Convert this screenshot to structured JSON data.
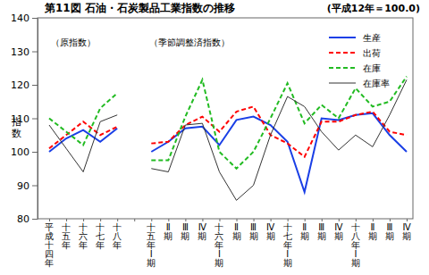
{
  "chart_data": {
    "type": "line",
    "title": "第11図 石油・石炭製品工業指数の推移",
    "subtitle": "(平成12年＝100.0)",
    "y_label": "指数",
    "annotations": [
      "（原指数）",
      "（季節調整済指数）"
    ],
    "categories": [
      "平成十四年",
      "十五年",
      "十六年",
      "十七年",
      "十八年",
      null,
      "十五年Ⅰ期",
      "Ⅱ期",
      "Ⅲ期",
      "Ⅳ期",
      "十六年Ⅰ期",
      "Ⅱ期",
      "Ⅲ期",
      "Ⅳ期",
      "十七年Ⅰ期",
      "Ⅱ期",
      "Ⅲ期",
      "Ⅳ期",
      "十八年Ⅰ期",
      "Ⅱ期",
      "Ⅲ期",
      "Ⅳ期"
    ],
    "series": [
      {
        "name": "生産",
        "color": "#1a3fe6",
        "line_style": "solid",
        "values": [
          100,
          104,
          106.5,
          103,
          107,
          null,
          100,
          103,
          107,
          107.5,
          102,
          109.5,
          110.5,
          108,
          103,
          88,
          110,
          109.5,
          111,
          111.5,
          105,
          100
        ]
      },
      {
        "name": "出荷",
        "color": "#ff0000",
        "line_style": "dashed",
        "values": [
          101,
          105,
          109,
          105,
          107.5,
          null,
          102.5,
          103,
          108,
          110.5,
          106,
          112,
          113.5,
          105,
          102.5,
          98.5,
          109,
          109,
          111,
          112,
          106,
          105
        ]
      },
      {
        "name": "在庫",
        "color": "#22bb22",
        "line_style": "dashed",
        "values": [
          110,
          106,
          102,
          113,
          117.5,
          null,
          97.5,
          97.5,
          110.5,
          121.5,
          100,
          95,
          100,
          110,
          120.5,
          108.5,
          114,
          110,
          119,
          113.5,
          115,
          122.5
        ]
      },
      {
        "name": "在庫率",
        "color": "#333333",
        "line_style": "solid",
        "values": [
          108,
          101,
          94,
          109,
          111,
          null,
          95,
          94,
          108,
          108.5,
          94,
          85.5,
          90,
          105,
          116.5,
          113.5,
          106,
          100.5,
          105,
          101.5,
          111,
          121.5
        ]
      }
    ],
    "ylim": [
      80,
      140
    ],
    "yticks": [
      80,
      90,
      100,
      110,
      120,
      130,
      140
    ],
    "grid": false,
    "legend": "upper right"
  }
}
